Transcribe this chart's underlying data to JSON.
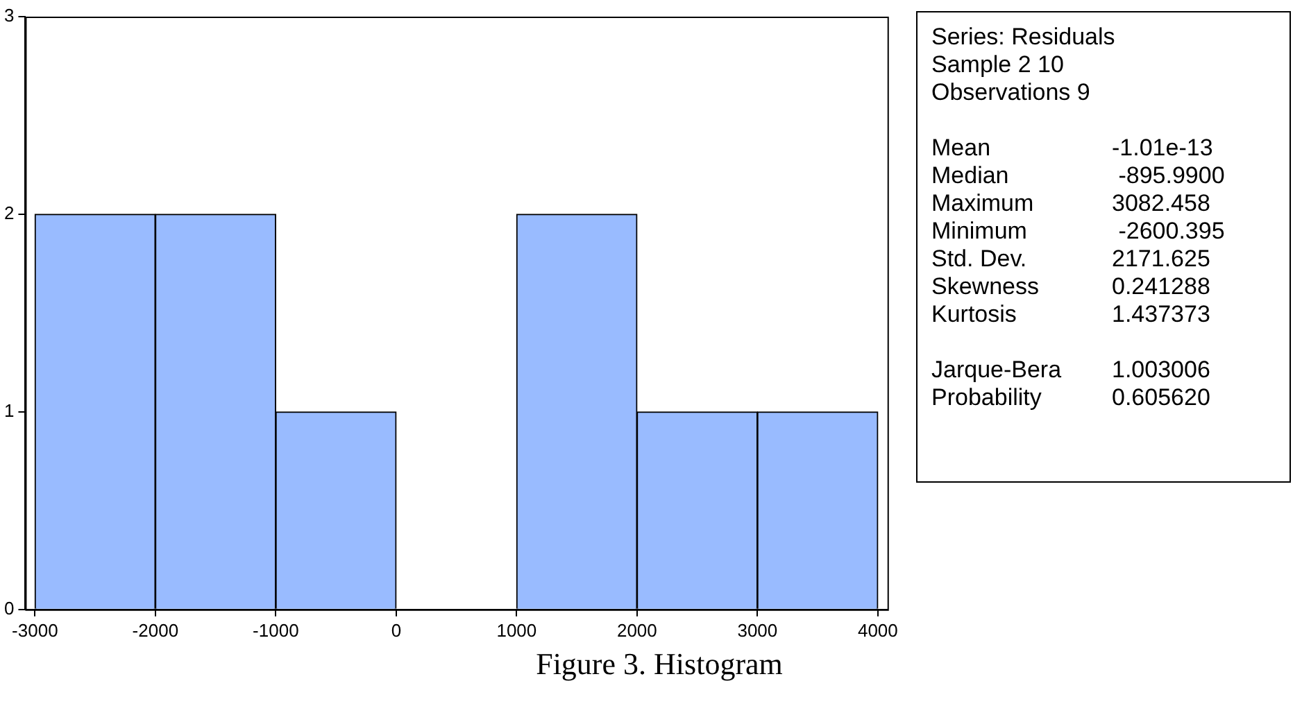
{
  "chart_data": [
    {
      "type": "histogram",
      "title": "Figure 3. Histogram",
      "bins": [
        -3000,
        -2000,
        -1000,
        0,
        1000,
        2000,
        3000,
        4000
      ],
      "values": [
        2,
        2,
        1,
        0,
        2,
        1,
        1
      ],
      "color": "#99bbff",
      "xlim": [
        -3080,
        4080
      ],
      "xticks": [
        -3000,
        -2000,
        -1000,
        0,
        1000,
        2000,
        3000,
        4000
      ],
      "ylim": [
        0,
        3
      ],
      "yticks": [
        0,
        1,
        2,
        3
      ],
      "grid": false,
      "legend": false
    },
    {
      "type": "other",
      "annotations": [
        "Series: Residuals\nSample 2 10\nObservations 9",
        "Mean\t-1.01e-13\nMedian\t -895.9900\nMaximum\t3082.458\nMinimum\t -2600.395\nStd. Dev.\t2171.625\nSkewness\t0.241288\nKurtosis\t1.437373",
        "Jarque-Bera\t1.003006\nProbability\t0.605620"
      ]
    }
  ]
}
